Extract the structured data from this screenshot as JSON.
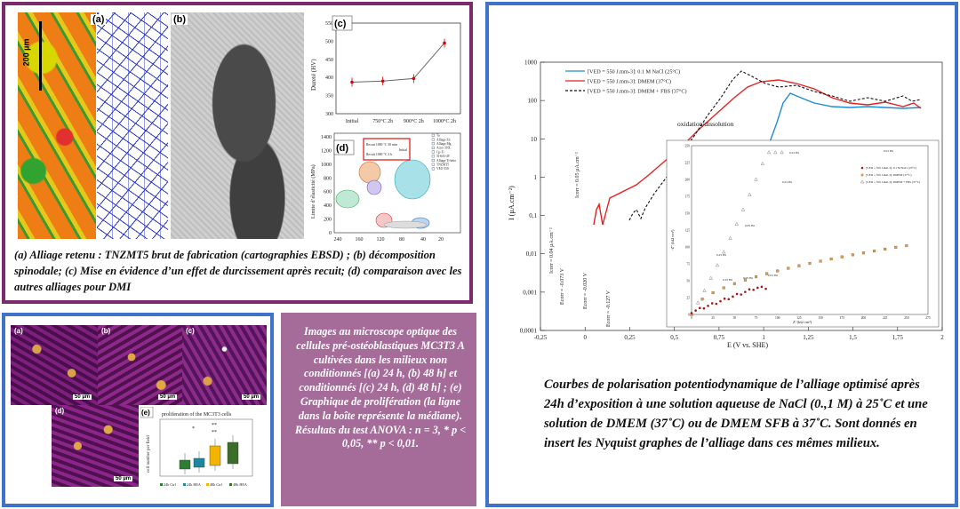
{
  "panel1": {
    "labels": [
      "(a)",
      "(b)",
      "(c)",
      "(d)"
    ],
    "scale_bar": "200 µm",
    "caption": "(a) Alliage retenu : TNZMT5 brut de fabrication (cartographies EBSD) ; (b) décomposition spinodale; (c) Mise en évidence d’un effet de durcissement après recuit; (d) comparaison avec les autres alliages pour DMI",
    "chart_c": {
      "ylabel": "Dureté (HV)",
      "categories": [
        "Initial",
        "750°C 2h",
        "900°C 2h",
        "1000°C 2h"
      ],
      "values": [
        387,
        390,
        397,
        495
      ],
      "yticks": [
        "300",
        "350",
        "400",
        "450",
        "500",
        "550"
      ],
      "ylim": [
        300,
        550
      ]
    },
    "chart_d": {
      "ylabel": "Limite d’élasticité (MPa)",
      "yticks": [
        "1400",
        "1200",
        "1000",
        "800",
        "600",
        "400",
        "200",
        "0"
      ],
      "xticks": [
        "240",
        "160",
        "120",
        "80",
        "40",
        "20"
      ],
      "inset": [
        "Recuit 1000 °C 30 min",
        "Recuit 1000 °C 2 h",
        "Initial"
      ],
      "legend": [
        "Ta",
        "Alliage Zn",
        "Alliage Mg",
        "Acier 316L",
        "Cp-Ti",
        "Ti-6Al-4V",
        "Alliage Ti-béta",
        "TNZMT5",
        "VEO 550"
      ]
    }
  },
  "panel2": {
    "labels": [
      "(a)",
      "(b)",
      "(c)",
      "(d)",
      "(e)"
    ],
    "scale": "50 µm",
    "chart_e": {
      "title": "proliferation of the MC3T3 cells",
      "ylabel": "cell number per field",
      "legend": [
        "24h Ctrl",
        "24h HEA",
        "48h Ctrl",
        "48h HEA"
      ],
      "colors": [
        "#2e7d32",
        "#1e88a0",
        "#f2b400",
        "#3b6e2a"
      ],
      "stars": [
        "*",
        "**",
        "**"
      ]
    }
  },
  "panel3": {
    "caption": "Images au microscope optique des cellules pré-ostéoblastiques MC3T3 A cultivées dans les milieux non conditionnés [(a) 24 h, (b) 48 h] et conditionnés [(c) 24 h, (d) 48 h] ; (e) Graphique de prolifération (la ligne dans la boîte représente la médiane). Résultats du test ANOVA : n = 3, * p < 0,05, ** p < 0,01."
  },
  "panel4": {
    "chart_data": {
      "type": "line",
      "xlabel": "E (V vs. SHE)",
      "ylabel": "I (µA.cm⁻²)",
      "xticks": [
        "-0,25",
        "0",
        "0,25",
        "0,5",
        "0,75",
        "1",
        "1,25",
        "1,5",
        "1,75",
        "2"
      ],
      "yticks": [
        "1000",
        "100",
        "10",
        "1",
        "0,1",
        "0,01",
        "0,001",
        "0,0001"
      ],
      "legend": [
        "[VED = 550 J.mm-3]: 0.1 M NaCl (25°C)",
        "[VED = 550 J.mm-3]: DMEM (37°C)",
        "[VED = 550 J.mm-3]: DMEM + FBS (37°C)"
      ],
      "colors": [
        "#1f8ad6",
        "#e32222",
        "#111111"
      ],
      "annotation": "oxidation/dissolution",
      "markers": [
        "Icorr = 0.05 µA.cm⁻²",
        "Icorr = 0.04 µA.cm⁻²",
        "Ecorr = -0.073 V",
        "Ecorr = -0.020 V",
        "Ecorr = -0.127 V"
      ]
    },
    "inset": {
      "xlabel": "Z' (kΩ cm²)",
      "ylabel": "-Z'' (kΩ cm²)",
      "legend": [
        "[VED = 550 J.mm-3]: 0.1 M NaCl (25°C)",
        "[VED = 550 J.mm-3]: DMEM (37°C)",
        "[VED = 550 J.mm-3]: DMEM + FBS (37°C)"
      ],
      "freq_labels": [
        "0.01 Hz",
        "0.01 Hz",
        "0.01 Hz",
        "0.01 Hz",
        "0.05 Hz",
        "0.05 Hz",
        "0.25 Hz",
        "0.25 Hz"
      ],
      "xticks": [
        "0",
        "25",
        "50",
        "75",
        "100",
        "125",
        "150",
        "175",
        "200",
        "225",
        "250",
        "275"
      ],
      "yticks": [
        "250",
        "225",
        "200",
        "175",
        "150",
        "125",
        "100",
        "75",
        "50",
        "25",
        "0"
      ]
    },
    "caption": "Courbes de polarisation potentiodynamique de l’alliage optimisé après 24h d’exposition à une solution aqueuse de NaCl (0.,1 M) à 25˚C et une solution de DMEM (37˚C) ou de DMEM SFB à 37˚C. Sont donnés en insert les Nyquist graphes de l’alliage dans ces mêmes milieux."
  }
}
